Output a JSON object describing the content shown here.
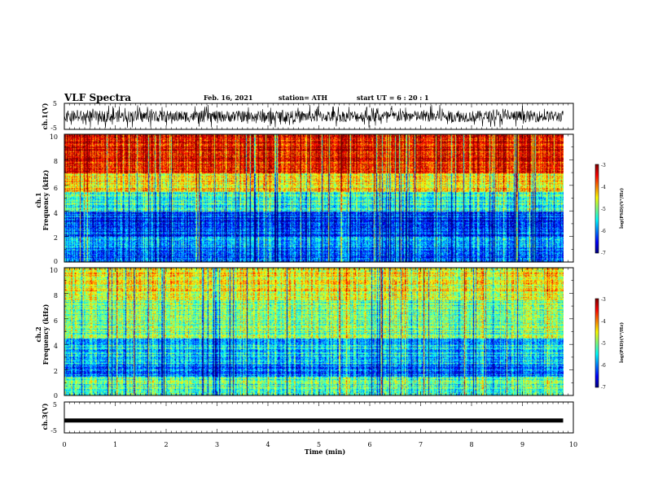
{
  "header": {
    "title": "VLF Spectra",
    "date": "Feb. 16, 2021",
    "station": "station= ATH",
    "start": "start  UT =   6 : 20 : 1"
  },
  "chart_data": [
    {
      "type": "line",
      "ylabel": "ch.1(V)",
      "xlim": [
        0,
        10
      ],
      "ylim": [
        -5,
        5
      ],
      "yticks": [
        "5",
        "-5"
      ]
    },
    {
      "type": "heatmap",
      "ylabel": "ch.1\nFrequency (kHz)",
      "xlim": [
        0,
        9.8
      ],
      "ylim": [
        0,
        10
      ],
      "yticks": [
        "0",
        "2",
        "4",
        "6",
        "8",
        "10"
      ],
      "colorbar": {
        "label": "log(PSD)(V²/Hz)",
        "range": [
          -7,
          -3
        ],
        "ticks": [
          "-3",
          "-4",
          "-5",
          "-6",
          "-7"
        ]
      }
    },
    {
      "type": "heatmap",
      "ylabel": "ch.2\nFrequency (kHz)",
      "xlim": [
        0,
        9.8
      ],
      "ylim": [
        0,
        10
      ],
      "yticks": [
        "0",
        "2",
        "4",
        "6",
        "8",
        "10"
      ],
      "colorbar": {
        "label": "log(PSD)(V²/Hz)",
        "range": [
          -7,
          -3
        ],
        "ticks": [
          "-3",
          "-4",
          "-5",
          "-6",
          "-7"
        ]
      }
    },
    {
      "type": "line",
      "ylabel": "ch.3(V)",
      "xlim": [
        0,
        10
      ],
      "ylim": [
        -5,
        5
      ],
      "yticks": [
        "5",
        "-5"
      ],
      "x": [
        0,
        9.8
      ],
      "y": [
        -1.0,
        -1.0
      ]
    }
  ],
  "xaxis": {
    "label": "Time (min)",
    "ticks": [
      "0",
      "1",
      "2",
      "3",
      "4",
      "5",
      "6",
      "7",
      "8",
      "9",
      "10"
    ]
  },
  "colors": {
    "jet": [
      "#00007f",
      "#0000ff",
      "#007fff",
      "#00ffff",
      "#7fff7f",
      "#ffff00",
      "#ff7f00",
      "#ff0000",
      "#7f0000"
    ]
  }
}
